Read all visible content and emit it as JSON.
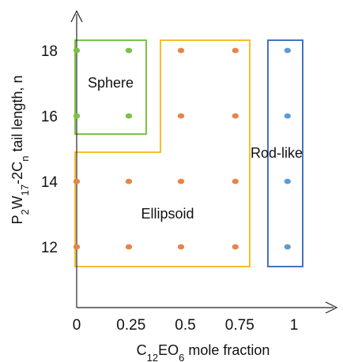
{
  "chart_data": {
    "type": "scatter",
    "xlabel": "C12EO6 mole fraction",
    "ylabel": "P2W17-2Cn tail length, n",
    "x_tick_labels": [
      "0",
      "0.25",
      "0.5",
      "0.75",
      "1"
    ],
    "y_tick_labels": [
      "12",
      "14",
      "16",
      "18"
    ],
    "xlim": [
      0,
      1
    ],
    "ylim": [
      11,
      19
    ],
    "grid": false,
    "regions": [
      {
        "label": "Sphere",
        "color": "#7cc243"
      },
      {
        "label": "Ellipsoid",
        "color": "#f5be2e"
      },
      {
        "label": "Rod-like",
        "color": "#4472c4"
      }
    ],
    "series": [
      {
        "color": "#7cc243",
        "points": [
          [
            0,
            18
          ],
          [
            0.24,
            18
          ],
          [
            0,
            16
          ],
          [
            0.24,
            16
          ]
        ]
      },
      {
        "color": "#e8844a",
        "points": [
          [
            0.48,
            18
          ],
          [
            0.73,
            18
          ],
          [
            0.48,
            16
          ],
          [
            0.73,
            16
          ],
          [
            0,
            14
          ],
          [
            0.24,
            14
          ],
          [
            0.48,
            14
          ],
          [
            0.73,
            14
          ],
          [
            0,
            12
          ],
          [
            0.24,
            12
          ],
          [
            0.48,
            12
          ],
          [
            0.73,
            12
          ]
        ]
      },
      {
        "color": "#5b9bd5",
        "points": [
          [
            0.97,
            18
          ],
          [
            0.97,
            16
          ],
          [
            0.97,
            14
          ],
          [
            0.97,
            12
          ]
        ]
      }
    ]
  }
}
